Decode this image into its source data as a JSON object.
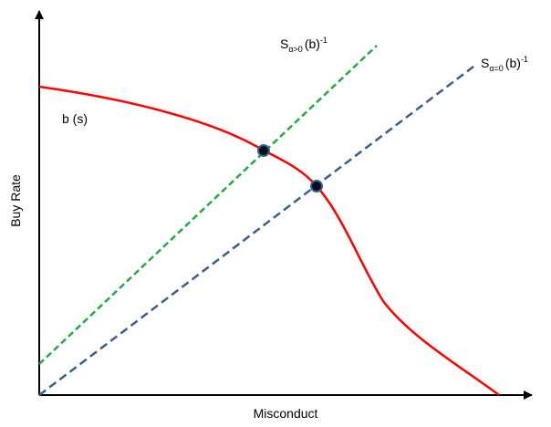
{
  "axes": {
    "xlabel": "Misconduct",
    "ylabel": "Buy Rate"
  },
  "curves": {
    "demand": {
      "label": "b (s)",
      "color": "#ff0000"
    },
    "supply_positive": {
      "label_base": "S",
      "label_sub": "α>0",
      "label_tail": "(b)",
      "label_sup": "-1",
      "color": "#22aa44"
    },
    "supply_zero": {
      "label_base": "S",
      "label_sub": "α=0",
      "label_tail": "(b)",
      "label_sup": "-1",
      "color": "#3a5f8a"
    }
  },
  "points": {
    "color": "#0a0f1e",
    "outline": "#3a5f8a"
  }
}
